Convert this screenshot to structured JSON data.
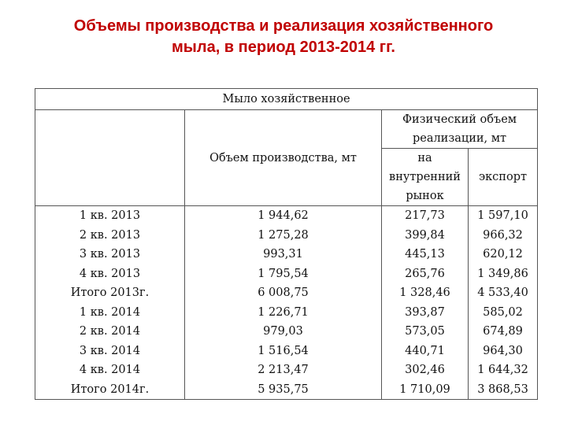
{
  "title": {
    "line1": "Объемы производства и реализация хозяйственного",
    "line2": "мыла, в период 2013-2014 гг."
  },
  "table": {
    "caption": "Мыло хозяйственное",
    "col_production": "Объем производства, мт",
    "col_physical": [
      "Физический объем",
      "реализации, мт"
    ],
    "col_domestic": [
      "на",
      "внутренний",
      "рынок"
    ],
    "col_export": "экспорт",
    "rows": [
      {
        "period": "1 кв. 2013",
        "production": "1 944,62",
        "domestic": "217,73",
        "export": "1 597,10"
      },
      {
        "period": "2 кв. 2013",
        "production": "1 275,28",
        "domestic": "399,84",
        "export": "966,32"
      },
      {
        "period": "3 кв. 2013",
        "production": "993,31",
        "domestic": "445,13",
        "export": "620,12"
      },
      {
        "period": "4 кв. 2013",
        "production": "1 795,54",
        "domestic": "265,76",
        "export": "1 349,86"
      },
      {
        "period": "Итого 2013г.",
        "production": "6 008,75",
        "domestic": "1 328,46",
        "export": "4 533,40"
      },
      {
        "period": "1 кв. 2014",
        "production": "1 226,71",
        "domestic": "393,87",
        "export": "585,02"
      },
      {
        "period": "2 кв. 2014",
        "production": "979,03",
        "domestic": "573,05",
        "export": "674,89"
      },
      {
        "period": "3 кв. 2014",
        "production": "1 516,54",
        "domestic": "440,71",
        "export": "964,30"
      },
      {
        "period": "4 кв. 2014",
        "production": "2 213,47",
        "domestic": "302,46",
        "export": "1 644,32"
      },
      {
        "period": "Итого 2014г.",
        "production": "5 935,75",
        "domestic": "1 710,09",
        "export": "3 868,53"
      }
    ]
  }
}
